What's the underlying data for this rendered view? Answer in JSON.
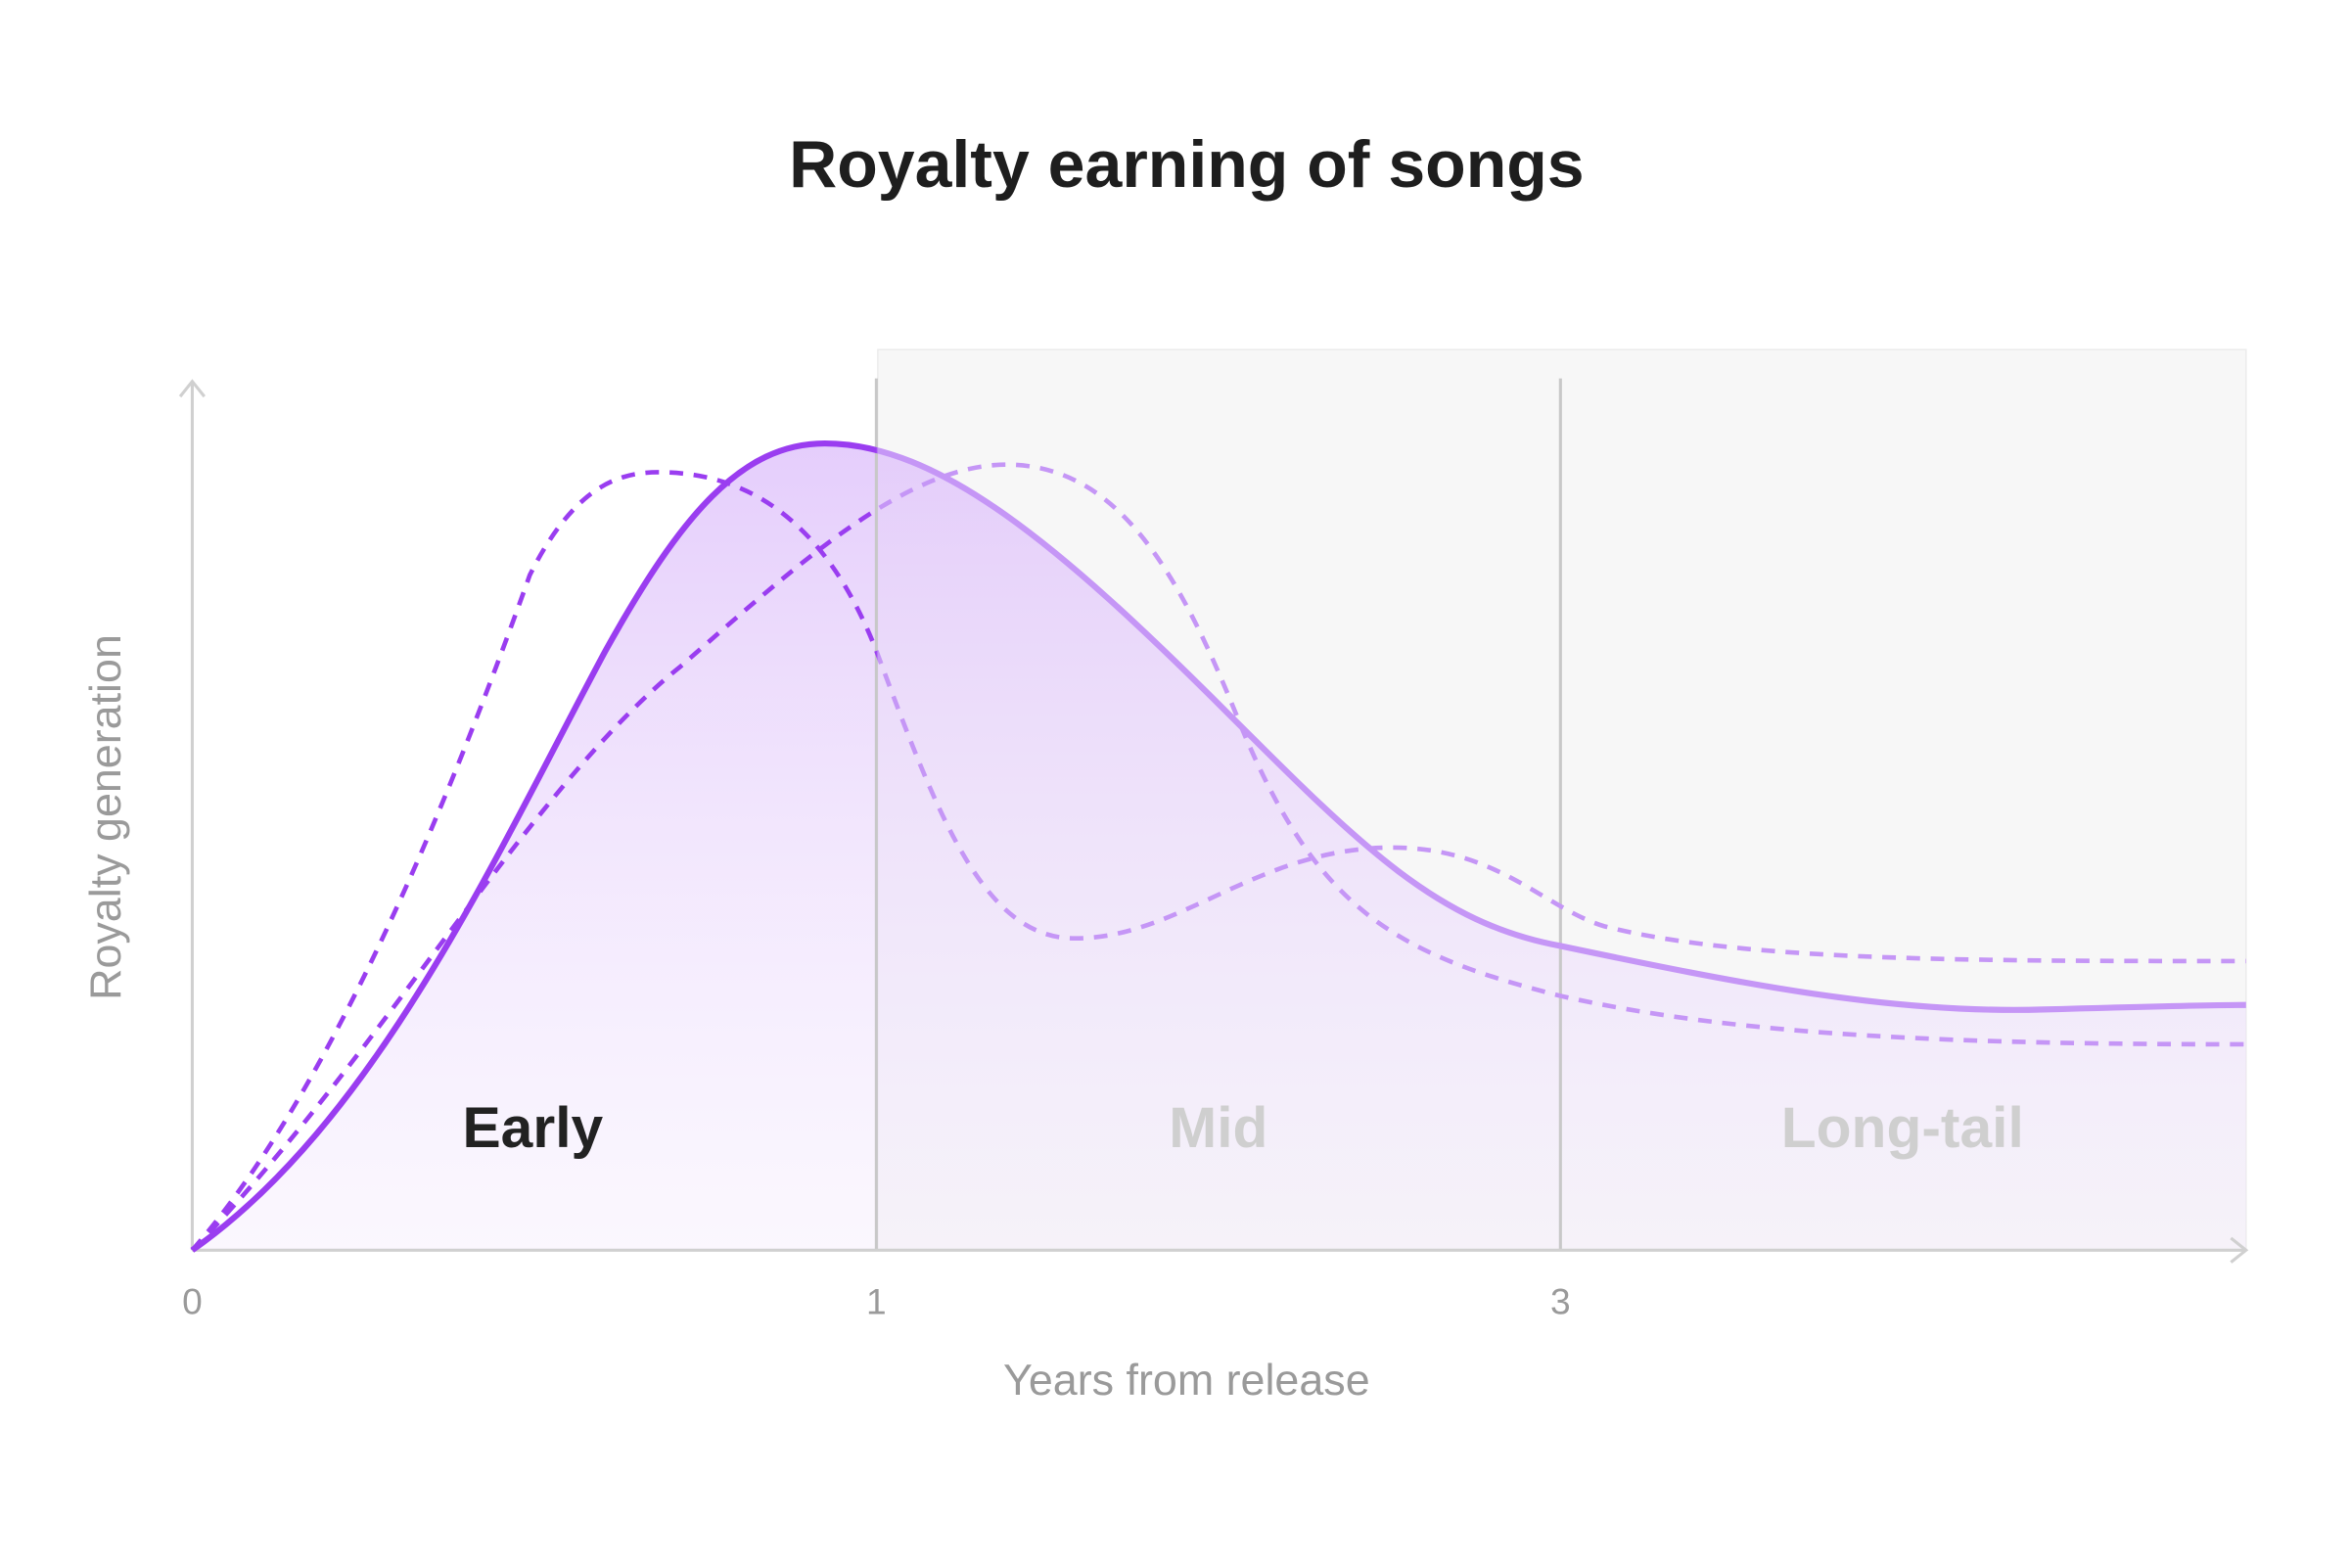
{
  "chart_data": {
    "title": "Royalty earning of songs",
    "x_label": "Years from release",
    "y_label": "Royalty generation",
    "categories": [
      "0",
      "1",
      "3"
    ],
    "phases": [
      "Early",
      "Mid",
      "Long-tail"
    ]
  }
}
